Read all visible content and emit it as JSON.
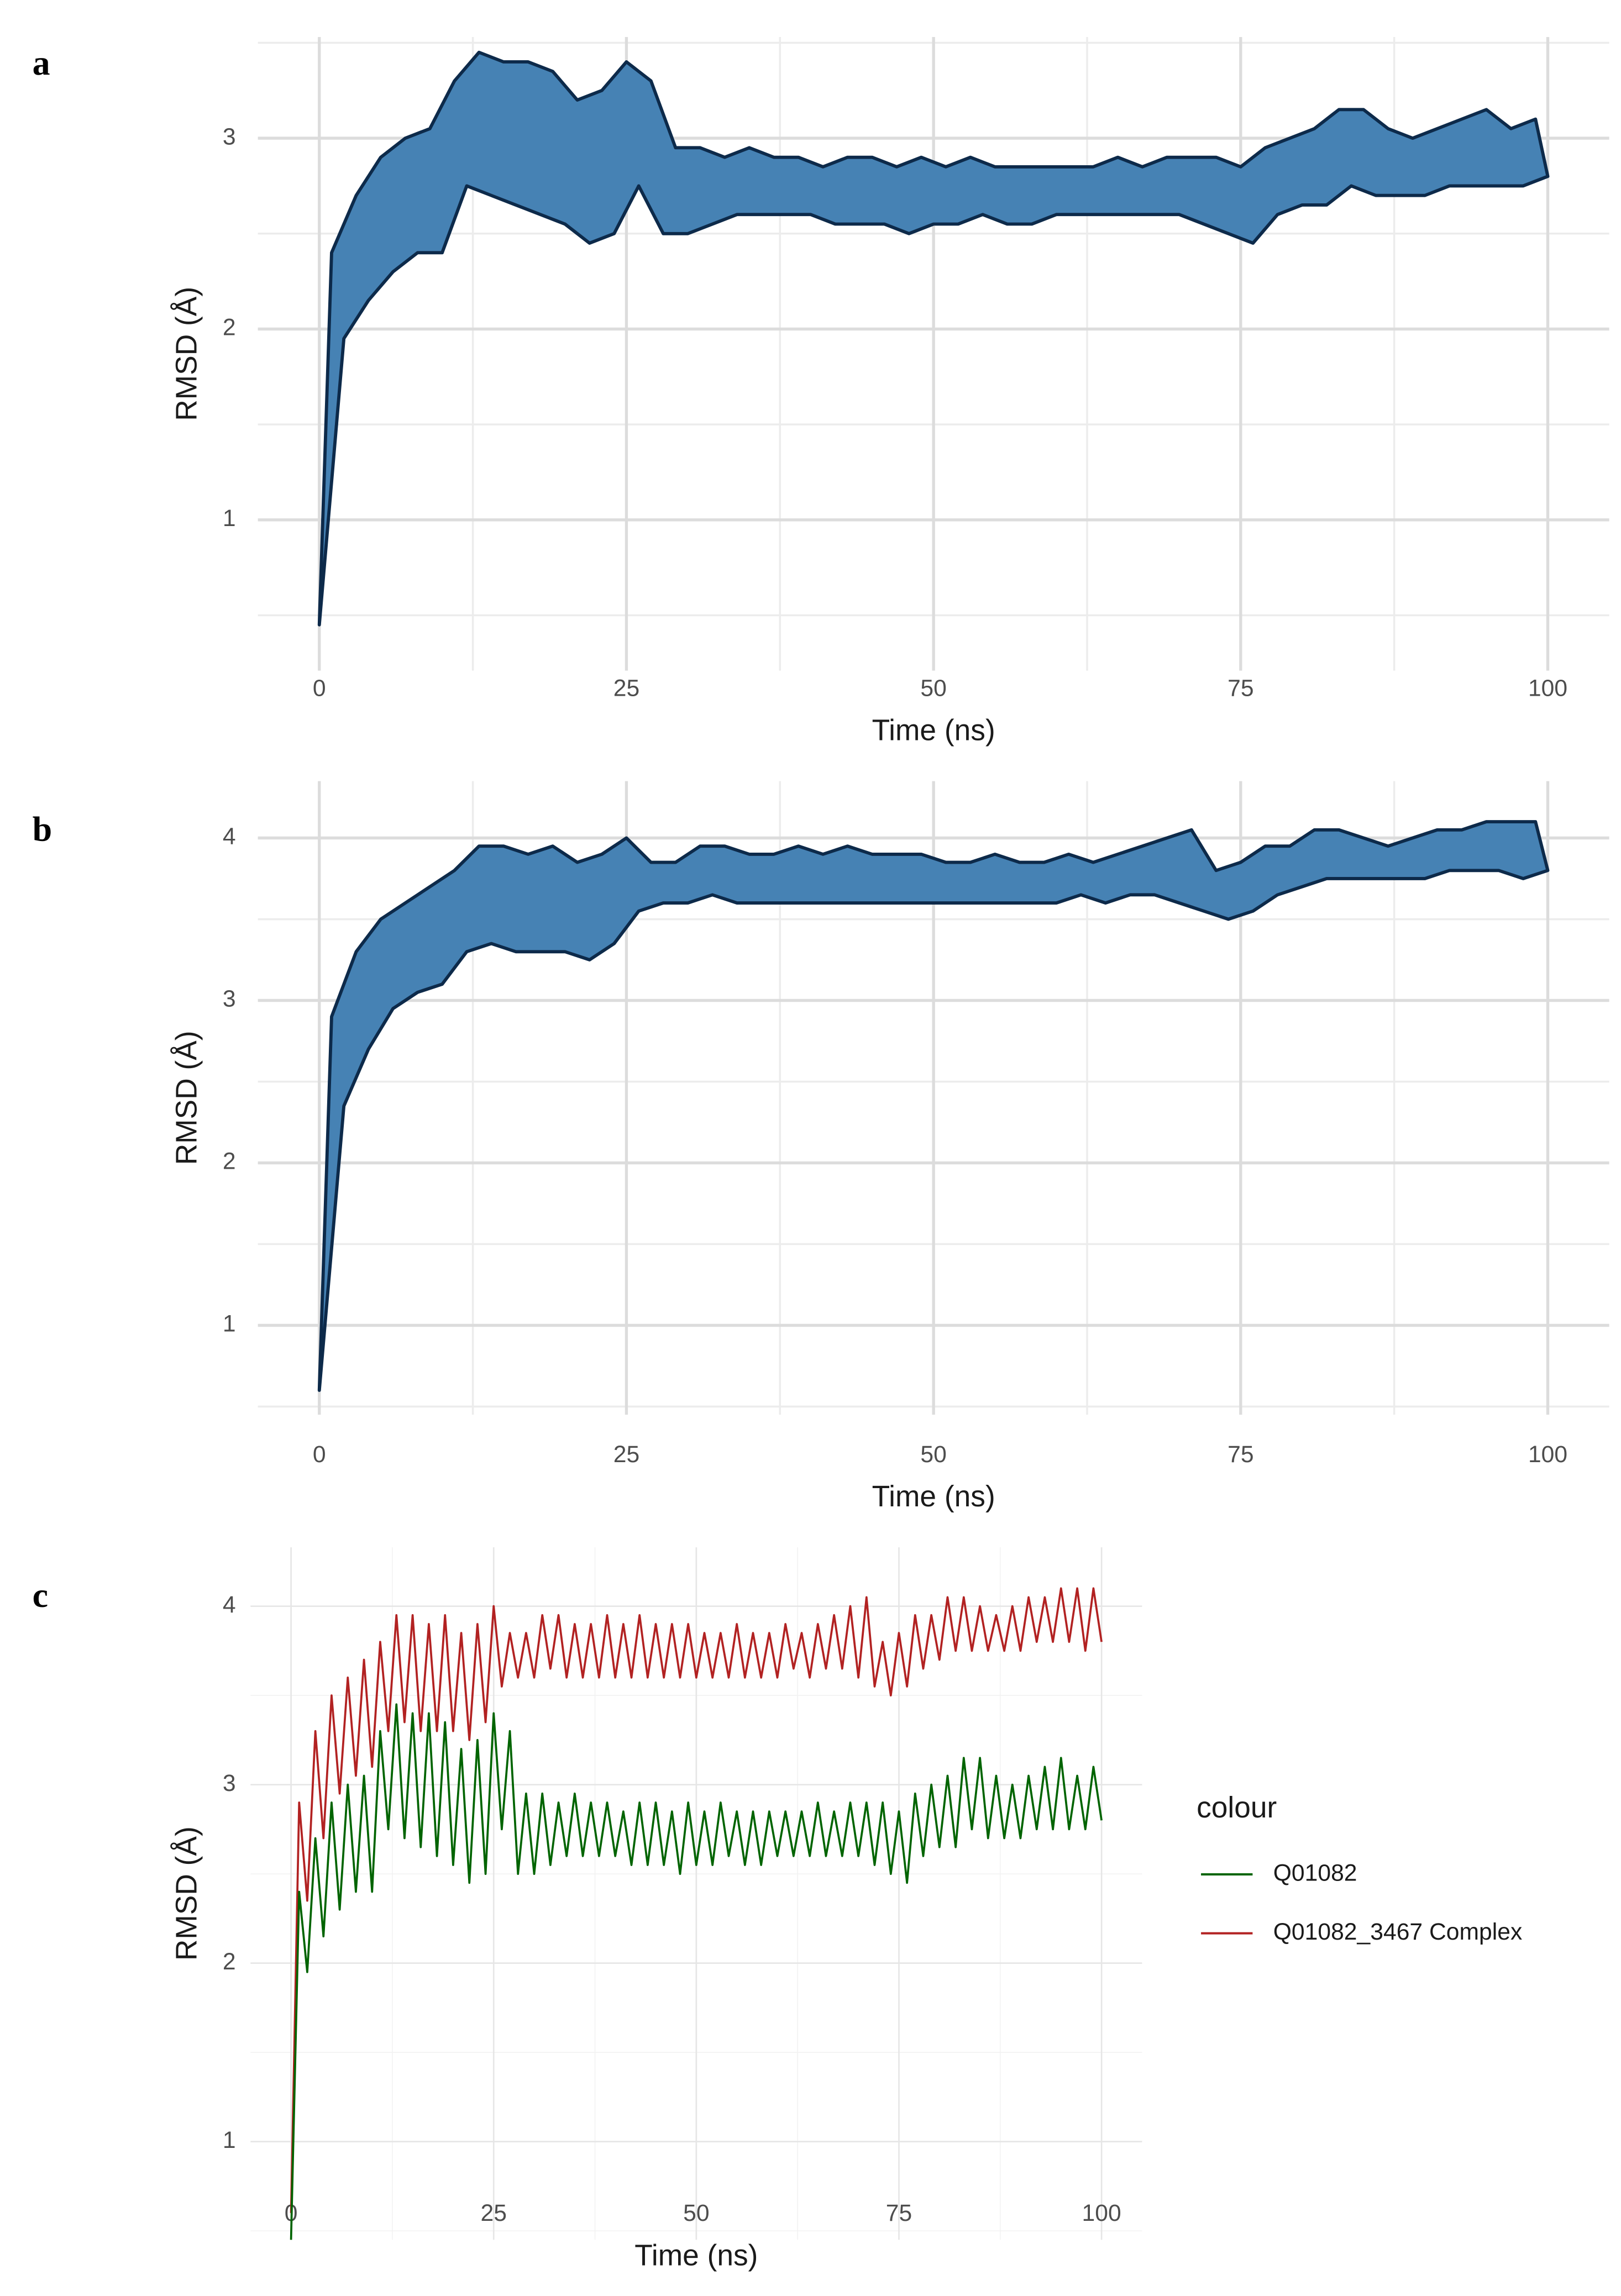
{
  "chart_data": [
    {
      "panel": "a",
      "type": "band",
      "x_label": "Time (ns)",
      "y_label": "RMSD (Å)",
      "xlim": [
        -5,
        105
      ],
      "xticks": [
        0,
        25,
        50,
        75,
        100
      ],
      "xminor": [
        12.5,
        37.5,
        62.5,
        87.5
      ],
      "ylim": [
        0.21,
        3.53
      ],
      "yticks": [
        1,
        2,
        3
      ],
      "yminor": [
        0.5,
        1.5,
        2.5,
        3.5
      ],
      "grid": true,
      "x": [
        0,
        1,
        2,
        3,
        4,
        5,
        6,
        7,
        8,
        9,
        10,
        11,
        12,
        13,
        14,
        15,
        16,
        17,
        18,
        19,
        20,
        21,
        22,
        23,
        24,
        25,
        26,
        27,
        28,
        29,
        30,
        31,
        32,
        33,
        34,
        35,
        36,
        37,
        38,
        39,
        40,
        41,
        42,
        43,
        44,
        45,
        46,
        47,
        48,
        49,
        50,
        51,
        52,
        53,
        54,
        55,
        56,
        57,
        58,
        59,
        60,
        61,
        62,
        63,
        64,
        65,
        66,
        67,
        68,
        69,
        70,
        71,
        72,
        73,
        74,
        75,
        76,
        77,
        78,
        79,
        80,
        81,
        82,
        83,
        84,
        85,
        86,
        87,
        88,
        89,
        90,
        91,
        92,
        93,
        94,
        95,
        96,
        97,
        98,
        99,
        100
      ],
      "series": [
        {
          "color": "#4682b4",
          "edge": "#0d2a4a",
          "values": [
            0.45,
            2.4,
            1.95,
            2.7,
            2.15,
            2.9,
            2.3,
            3.0,
            2.4,
            3.05,
            2.4,
            3.3,
            2.75,
            3.45,
            2.7,
            3.4,
            2.65,
            3.4,
            2.6,
            3.35,
            2.55,
            3.2,
            2.45,
            3.25,
            2.5,
            3.4,
            2.75,
            3.3,
            2.5,
            2.95,
            2.5,
            2.95,
            2.55,
            2.9,
            2.6,
            2.95,
            2.6,
            2.9,
            2.6,
            2.9,
            2.6,
            2.85,
            2.55,
            2.9,
            2.55,
            2.9,
            2.55,
            2.85,
            2.5,
            2.9,
            2.55,
            2.85,
            2.55,
            2.9,
            2.6,
            2.85,
            2.55,
            2.85,
            2.55,
            2.85,
            2.6,
            2.85,
            2.6,
            2.85,
            2.6,
            2.9,
            2.6,
            2.85,
            2.6,
            2.9,
            2.6,
            2.9,
            2.55,
            2.9,
            2.5,
            2.85,
            2.45,
            2.95,
            2.6,
            3.0,
            2.65,
            3.05,
            2.65,
            3.15,
            2.75,
            3.15,
            2.7,
            3.05,
            2.7,
            3.0,
            2.7,
            3.05,
            2.75,
            3.1,
            2.75,
            3.15,
            2.75,
            3.05,
            2.75,
            3.1,
            2.8
          ]
        }
      ]
    },
    {
      "panel": "b",
      "type": "band",
      "x_label": "Time (ns)",
      "y_label": "RMSD (Å)",
      "xlim": [
        -5,
        105
      ],
      "xticks": [
        0,
        25,
        50,
        75,
        100
      ],
      "xminor": [
        12.5,
        37.5,
        62.5,
        87.5
      ],
      "ylim": [
        0.45,
        4.35
      ],
      "yticks": [
        1,
        2,
        3,
        4
      ],
      "yminor": [
        0.5,
        1.5,
        2.5,
        3.5
      ],
      "grid": true,
      "x": [
        0,
        1,
        2,
        3,
        4,
        5,
        6,
        7,
        8,
        9,
        10,
        11,
        12,
        13,
        14,
        15,
        16,
        17,
        18,
        19,
        20,
        21,
        22,
        23,
        24,
        25,
        26,
        27,
        28,
        29,
        30,
        31,
        32,
        33,
        34,
        35,
        36,
        37,
        38,
        39,
        40,
        41,
        42,
        43,
        44,
        45,
        46,
        47,
        48,
        49,
        50,
        51,
        52,
        53,
        54,
        55,
        56,
        57,
        58,
        59,
        60,
        61,
        62,
        63,
        64,
        65,
        66,
        67,
        68,
        69,
        70,
        71,
        72,
        73,
        74,
        75,
        76,
        77,
        78,
        79,
        80,
        81,
        82,
        83,
        84,
        85,
        86,
        87,
        88,
        89,
        90,
        91,
        92,
        93,
        94,
        95,
        96,
        97,
        98,
        99,
        100
      ],
      "series": [
        {
          "color": "#4682b4",
          "edge": "#0d2a4a",
          "values": [
            0.6,
            2.9,
            2.35,
            3.3,
            2.7,
            3.5,
            2.95,
            3.6,
            3.05,
            3.7,
            3.1,
            3.8,
            3.3,
            3.95,
            3.35,
            3.95,
            3.3,
            3.9,
            3.3,
            3.95,
            3.3,
            3.85,
            3.25,
            3.9,
            3.35,
            4.0,
            3.55,
            3.85,
            3.6,
            3.85,
            3.6,
            3.95,
            3.65,
            3.95,
            3.6,
            3.9,
            3.6,
            3.9,
            3.6,
            3.95,
            3.6,
            3.9,
            3.6,
            3.95,
            3.6,
            3.9,
            3.6,
            3.9,
            3.6,
            3.9,
            3.6,
            3.85,
            3.6,
            3.85,
            3.6,
            3.9,
            3.6,
            3.85,
            3.6,
            3.85,
            3.6,
            3.9,
            3.65,
            3.85,
            3.6,
            3.9,
            3.65,
            3.95,
            3.65,
            4.0,
            3.6,
            4.05,
            3.55,
            3.8,
            3.5,
            3.85,
            3.55,
            3.95,
            3.65,
            3.95,
            3.7,
            4.05,
            3.75,
            4.05,
            3.75,
            4.0,
            3.75,
            3.95,
            3.75,
            4.0,
            3.75,
            4.05,
            3.8,
            4.05,
            3.8,
            4.1,
            3.8,
            4.1,
            3.75,
            4.1,
            3.8
          ]
        }
      ]
    },
    {
      "panel": "c",
      "type": "line",
      "x_label": "Time (ns)",
      "y_label": "RMSD (Å)",
      "legend_title": "colour",
      "xlim": [
        -5,
        105
      ],
      "xticks": [
        0,
        25,
        50,
        75,
        100
      ],
      "xminor": [
        12.5,
        37.5,
        62.5,
        87.5
      ],
      "ylim": [
        0.45,
        4.33
      ],
      "yticks": [
        1,
        2,
        3,
        4
      ],
      "yminor": [
        0.5,
        1.5,
        2.5,
        3.5
      ],
      "grid": true,
      "x": [
        0,
        1,
        2,
        3,
        4,
        5,
        6,
        7,
        8,
        9,
        10,
        11,
        12,
        13,
        14,
        15,
        16,
        17,
        18,
        19,
        20,
        21,
        22,
        23,
        24,
        25,
        26,
        27,
        28,
        29,
        30,
        31,
        32,
        33,
        34,
        35,
        36,
        37,
        38,
        39,
        40,
        41,
        42,
        43,
        44,
        45,
        46,
        47,
        48,
        49,
        50,
        51,
        52,
        53,
        54,
        55,
        56,
        57,
        58,
        59,
        60,
        61,
        62,
        63,
        64,
        65,
        66,
        67,
        68,
        69,
        70,
        71,
        72,
        73,
        74,
        75,
        76,
        77,
        78,
        79,
        80,
        81,
        82,
        83,
        84,
        85,
        86,
        87,
        88,
        89,
        90,
        91,
        92,
        93,
        94,
        95,
        96,
        97,
        98,
        99,
        100
      ],
      "series": [
        {
          "name": "Q01082",
          "color": "#006400",
          "values": [
            0.45,
            2.4,
            1.95,
            2.7,
            2.15,
            2.9,
            2.3,
            3.0,
            2.4,
            3.05,
            2.4,
            3.3,
            2.75,
            3.45,
            2.7,
            3.4,
            2.65,
            3.4,
            2.6,
            3.35,
            2.55,
            3.2,
            2.45,
            3.25,
            2.5,
            3.4,
            2.75,
            3.3,
            2.5,
            2.95,
            2.5,
            2.95,
            2.55,
            2.9,
            2.6,
            2.95,
            2.6,
            2.9,
            2.6,
            2.9,
            2.6,
            2.85,
            2.55,
            2.9,
            2.55,
            2.9,
            2.55,
            2.85,
            2.5,
            2.9,
            2.55,
            2.85,
            2.55,
            2.9,
            2.6,
            2.85,
            2.55,
            2.85,
            2.55,
            2.85,
            2.6,
            2.85,
            2.6,
            2.85,
            2.6,
            2.9,
            2.6,
            2.85,
            2.6,
            2.9,
            2.6,
            2.9,
            2.55,
            2.9,
            2.5,
            2.85,
            2.45,
            2.95,
            2.6,
            3.0,
            2.65,
            3.05,
            2.65,
            3.15,
            2.75,
            3.15,
            2.7,
            3.05,
            2.7,
            3.0,
            2.7,
            3.05,
            2.75,
            3.1,
            2.75,
            3.15,
            2.75,
            3.05,
            2.75,
            3.1,
            2.8
          ]
        },
        {
          "name": "Q01082_3467 Complex",
          "color": "#b22222",
          "values": [
            0.6,
            2.9,
            2.35,
            3.3,
            2.7,
            3.5,
            2.95,
            3.6,
            3.05,
            3.7,
            3.1,
            3.8,
            3.3,
            3.95,
            3.35,
            3.95,
            3.3,
            3.9,
            3.3,
            3.95,
            3.3,
            3.85,
            3.25,
            3.9,
            3.35,
            4.0,
            3.55,
            3.85,
            3.6,
            3.85,
            3.6,
            3.95,
            3.65,
            3.95,
            3.6,
            3.9,
            3.6,
            3.9,
            3.6,
            3.95,
            3.6,
            3.9,
            3.6,
            3.95,
            3.6,
            3.9,
            3.6,
            3.9,
            3.6,
            3.9,
            3.6,
            3.85,
            3.6,
            3.85,
            3.6,
            3.9,
            3.6,
            3.85,
            3.6,
            3.85,
            3.6,
            3.9,
            3.65,
            3.85,
            3.6,
            3.9,
            3.65,
            3.95,
            3.65,
            4.0,
            3.6,
            4.05,
            3.55,
            3.8,
            3.5,
            3.85,
            3.55,
            3.95,
            3.65,
            3.95,
            3.7,
            4.05,
            3.75,
            4.05,
            3.75,
            4.0,
            3.75,
            3.95,
            3.75,
            4.0,
            3.75,
            4.05,
            3.8,
            4.05,
            3.8,
            4.1,
            3.8,
            4.1,
            3.75,
            4.1,
            3.8
          ]
        }
      ]
    }
  ]
}
